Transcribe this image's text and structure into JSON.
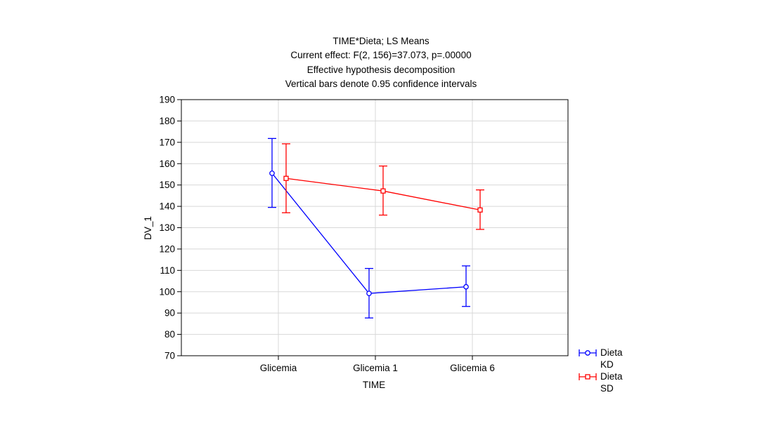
{
  "chart_data": {
    "type": "line",
    "title": "TIME*Dieta; LS Means",
    "subtitle": [
      "Current effect: F(2, 156)=37.073, p=.00000",
      "Effective hypothesis decomposition",
      "Vertical bars denote 0.95 confidence intervals"
    ],
    "xlabel": "TIME",
    "ylabel": "DV_1",
    "categories": [
      "Glicemia",
      "Glicemia 1",
      "Glicemia 6"
    ],
    "ylim": [
      70,
      190
    ],
    "yticks": [
      70,
      80,
      90,
      100,
      110,
      120,
      130,
      140,
      150,
      160,
      170,
      180,
      190
    ],
    "grid": true,
    "legend_position": "bottom-right outside",
    "series": [
      {
        "name": [
          "Dieta",
          "KD"
        ],
        "color": "#0000ff",
        "marker": "circle",
        "values": [
          155.5,
          99.2,
          102.3
        ],
        "ci_low": [
          139.5,
          87.7,
          93.1
        ],
        "ci_high": [
          171.8,
          110.9,
          112.1
        ]
      },
      {
        "name": [
          "Dieta",
          "SD"
        ],
        "color": "#ff0000",
        "marker": "square",
        "values": [
          153.1,
          147.2,
          138.3
        ],
        "ci_low": [
          137.0,
          135.9,
          129.2
        ],
        "ci_high": [
          169.3,
          158.9,
          147.7
        ]
      }
    ]
  }
}
